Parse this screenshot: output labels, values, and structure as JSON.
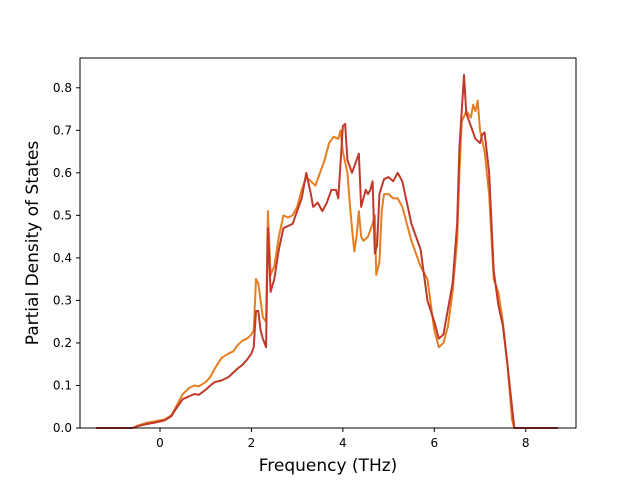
{
  "chart_data": {
    "type": "line",
    "title": "",
    "xlabel": "Frequency (THz)",
    "ylabel": "Partial Density of States",
    "xlim": [
      -1.75,
      9.1
    ],
    "ylim": [
      0.0,
      0.87
    ],
    "xticks": [
      0,
      2,
      4,
      6,
      8
    ],
    "yticks": [
      0.0,
      0.1,
      0.2,
      0.3,
      0.4,
      0.5,
      0.6,
      0.7,
      0.8
    ],
    "xtick_labels": [
      "0",
      "2",
      "4",
      "6",
      "8"
    ],
    "ytick_labels": [
      "0.0",
      "0.1",
      "0.2",
      "0.3",
      "0.4",
      "0.5",
      "0.6",
      "0.7",
      "0.8"
    ],
    "grid": false,
    "legend": "none",
    "series": [
      {
        "color": "#e67e22",
        "points": [
          [
            -1.4,
            0.0
          ],
          [
            -0.6,
            0.0
          ],
          [
            -0.5,
            0.005
          ],
          [
            -0.3,
            0.012
          ],
          [
            -0.1,
            0.016
          ],
          [
            0.1,
            0.02
          ],
          [
            0.25,
            0.03
          ],
          [
            0.35,
            0.05
          ],
          [
            0.5,
            0.08
          ],
          [
            0.65,
            0.095
          ],
          [
            0.75,
            0.1
          ],
          [
            0.85,
            0.098
          ],
          [
            1.0,
            0.108
          ],
          [
            1.1,
            0.12
          ],
          [
            1.2,
            0.14
          ],
          [
            1.35,
            0.165
          ],
          [
            1.5,
            0.175
          ],
          [
            1.6,
            0.18
          ],
          [
            1.7,
            0.195
          ],
          [
            1.8,
            0.205
          ],
          [
            1.9,
            0.21
          ],
          [
            2.0,
            0.22
          ],
          [
            2.05,
            0.23
          ],
          [
            2.1,
            0.35
          ],
          [
            2.15,
            0.34
          ],
          [
            2.2,
            0.3
          ],
          [
            2.25,
            0.26
          ],
          [
            2.32,
            0.25
          ],
          [
            2.36,
            0.51
          ],
          [
            2.42,
            0.36
          ],
          [
            2.5,
            0.38
          ],
          [
            2.6,
            0.45
          ],
          [
            2.7,
            0.5
          ],
          [
            2.8,
            0.495
          ],
          [
            2.9,
            0.5
          ],
          [
            3.0,
            0.52
          ],
          [
            3.1,
            0.56
          ],
          [
            3.2,
            0.59
          ],
          [
            3.3,
            0.58
          ],
          [
            3.4,
            0.57
          ],
          [
            3.5,
            0.6
          ],
          [
            3.6,
            0.63
          ],
          [
            3.7,
            0.67
          ],
          [
            3.8,
            0.685
          ],
          [
            3.9,
            0.68
          ],
          [
            3.95,
            0.7
          ],
          [
            4.0,
            0.65
          ],
          [
            4.1,
            0.6
          ],
          [
            4.15,
            0.53
          ],
          [
            4.2,
            0.47
          ],
          [
            4.25,
            0.415
          ],
          [
            4.3,
            0.45
          ],
          [
            4.35,
            0.51
          ],
          [
            4.4,
            0.45
          ],
          [
            4.45,
            0.44
          ],
          [
            4.55,
            0.45
          ],
          [
            4.65,
            0.48
          ],
          [
            4.7,
            0.5
          ],
          [
            4.73,
            0.36
          ],
          [
            4.8,
            0.39
          ],
          [
            4.85,
            0.51
          ],
          [
            4.9,
            0.55
          ],
          [
            5.0,
            0.55
          ],
          [
            5.1,
            0.54
          ],
          [
            5.2,
            0.54
          ],
          [
            5.3,
            0.52
          ],
          [
            5.5,
            0.44
          ],
          [
            5.7,
            0.38
          ],
          [
            5.85,
            0.35
          ],
          [
            6.0,
            0.23
          ],
          [
            6.1,
            0.19
          ],
          [
            6.2,
            0.2
          ],
          [
            6.3,
            0.24
          ],
          [
            6.4,
            0.32
          ],
          [
            6.5,
            0.44
          ],
          [
            6.55,
            0.6
          ],
          [
            6.6,
            0.72
          ],
          [
            6.7,
            0.745
          ],
          [
            6.8,
            0.73
          ],
          [
            6.85,
            0.76
          ],
          [
            6.9,
            0.745
          ],
          [
            6.95,
            0.77
          ],
          [
            7.0,
            0.7
          ],
          [
            7.1,
            0.65
          ],
          [
            7.2,
            0.55
          ],
          [
            7.3,
            0.35
          ],
          [
            7.4,
            0.32
          ],
          [
            7.5,
            0.25
          ],
          [
            7.6,
            0.15
          ],
          [
            7.7,
            0.02
          ],
          [
            7.75,
            0.0
          ],
          [
            8.7,
            0.0
          ]
        ]
      },
      {
        "color": "#c0392b",
        "points": [
          [
            -1.4,
            0.0
          ],
          [
            -0.6,
            0.0
          ],
          [
            -0.5,
            0.004
          ],
          [
            -0.3,
            0.009
          ],
          [
            -0.1,
            0.013
          ],
          [
            0.1,
            0.018
          ],
          [
            0.25,
            0.028
          ],
          [
            0.35,
            0.045
          ],
          [
            0.5,
            0.068
          ],
          [
            0.65,
            0.075
          ],
          [
            0.75,
            0.08
          ],
          [
            0.85,
            0.078
          ],
          [
            1.0,
            0.09
          ],
          [
            1.1,
            0.1
          ],
          [
            1.2,
            0.108
          ],
          [
            1.35,
            0.112
          ],
          [
            1.5,
            0.12
          ],
          [
            1.6,
            0.13
          ],
          [
            1.7,
            0.14
          ],
          [
            1.8,
            0.148
          ],
          [
            1.9,
            0.16
          ],
          [
            2.0,
            0.175
          ],
          [
            2.05,
            0.19
          ],
          [
            2.1,
            0.275
          ],
          [
            2.15,
            0.275
          ],
          [
            2.2,
            0.23
          ],
          [
            2.25,
            0.21
          ],
          [
            2.32,
            0.19
          ],
          [
            2.36,
            0.47
          ],
          [
            2.42,
            0.32
          ],
          [
            2.5,
            0.35
          ],
          [
            2.6,
            0.42
          ],
          [
            2.7,
            0.47
          ],
          [
            2.8,
            0.475
          ],
          [
            2.9,
            0.48
          ],
          [
            3.0,
            0.51
          ],
          [
            3.1,
            0.54
          ],
          [
            3.2,
            0.6
          ],
          [
            3.3,
            0.55
          ],
          [
            3.35,
            0.52
          ],
          [
            3.45,
            0.53
          ],
          [
            3.55,
            0.51
          ],
          [
            3.65,
            0.53
          ],
          [
            3.75,
            0.56
          ],
          [
            3.85,
            0.56
          ],
          [
            3.9,
            0.54
          ],
          [
            4.0,
            0.71
          ],
          [
            4.05,
            0.715
          ],
          [
            4.1,
            0.63
          ],
          [
            4.2,
            0.6
          ],
          [
            4.3,
            0.63
          ],
          [
            4.35,
            0.645
          ],
          [
            4.4,
            0.52
          ],
          [
            4.5,
            0.56
          ],
          [
            4.55,
            0.55
          ],
          [
            4.6,
            0.56
          ],
          [
            4.65,
            0.58
          ],
          [
            4.7,
            0.41
          ],
          [
            4.75,
            0.43
          ],
          [
            4.8,
            0.55
          ],
          [
            4.9,
            0.585
          ],
          [
            5.0,
            0.59
          ],
          [
            5.1,
            0.58
          ],
          [
            5.2,
            0.6
          ],
          [
            5.3,
            0.58
          ],
          [
            5.5,
            0.48
          ],
          [
            5.7,
            0.42
          ],
          [
            5.85,
            0.3
          ],
          [
            6.0,
            0.25
          ],
          [
            6.1,
            0.21
          ],
          [
            6.2,
            0.22
          ],
          [
            6.3,
            0.28
          ],
          [
            6.4,
            0.34
          ],
          [
            6.5,
            0.48
          ],
          [
            6.55,
            0.66
          ],
          [
            6.65,
            0.83
          ],
          [
            6.7,
            0.74
          ],
          [
            6.8,
            0.71
          ],
          [
            6.9,
            0.68
          ],
          [
            7.0,
            0.67
          ],
          [
            7.05,
            0.69
          ],
          [
            7.1,
            0.695
          ],
          [
            7.2,
            0.6
          ],
          [
            7.3,
            0.37
          ],
          [
            7.4,
            0.29
          ],
          [
            7.5,
            0.24
          ],
          [
            7.6,
            0.15
          ],
          [
            7.7,
            0.05
          ],
          [
            7.75,
            0.0
          ],
          [
            8.7,
            0.0
          ]
        ]
      }
    ]
  }
}
